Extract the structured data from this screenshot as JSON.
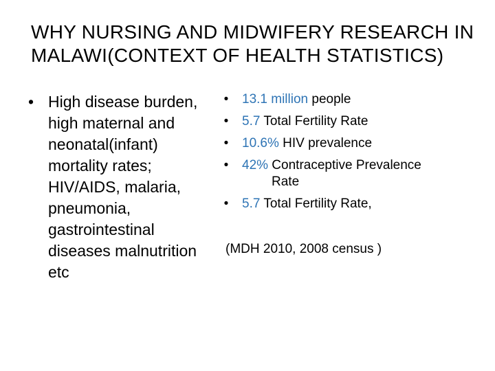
{
  "slide": {
    "title_lines": [
      "WHY  NURSING  AND  MIDWIFERY  RESEARCH  IN",
      "MALAWI(CONTEXT OF HEALTH STATISTICS)"
    ],
    "left": {
      "bullet_symbol": "•",
      "lines": [
        "High disease burden,",
        "high maternal and",
        "neonatal(infant)",
        "mortality rates;",
        "HIV/AIDS, malaria,",
        "pneumonia,",
        "gastrointestinal",
        "diseases malnutrition",
        "etc"
      ]
    },
    "right": {
      "bullet_symbol": "•",
      "items": [
        {
          "highlight": "13.1 million",
          "text": " people"
        },
        {
          "highlight": " 5.7",
          "text": " Total Fertility Rate"
        },
        {
          "highlight": "10.6%",
          "text": " HIV prevalence"
        },
        {
          "highlight": "42%",
          "text": " Contraceptive Prevalence",
          "continuation": "Rate"
        },
        {
          "highlight": "5.7",
          "text": " Total Fertility Rate,"
        }
      ],
      "citation": "(MDH 2010, 2008 census )"
    },
    "colors": {
      "highlight": "#2e74b5",
      "text": "#000000",
      "background": "#ffffff"
    }
  }
}
